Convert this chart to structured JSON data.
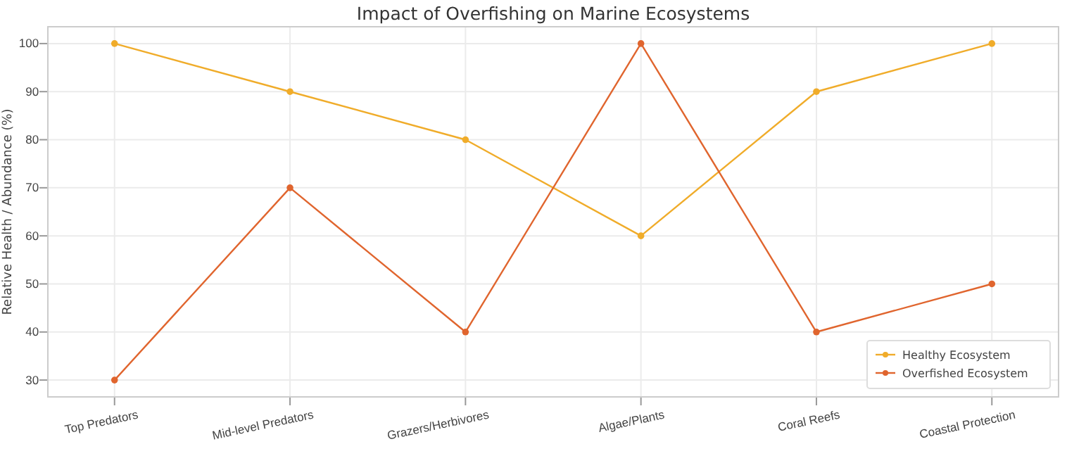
{
  "chart_data": {
    "type": "line",
    "title": "Impact of Overfishing on Marine Ecosystems",
    "ylabel": "Relative Health / Abundance (%)",
    "categories": [
      "Top Predators",
      "Mid-level Predators",
      "Grazers/Herbivores",
      "Algae/Plants",
      "Coral Reefs",
      "Coastal Protection"
    ],
    "series": [
      {
        "name": "Healthy Ecosystem",
        "color": "#f0ac2a",
        "values": [
          100,
          90,
          80,
          60,
          90,
          100
        ]
      },
      {
        "name": "Overfished Ecosystem",
        "color": "#e0652e",
        "values": [
          30,
          70,
          40,
          100,
          40,
          50
        ]
      }
    ],
    "ylim": [
      26.5,
      103.5
    ],
    "yticks": [
      30,
      40,
      50,
      60,
      70,
      80,
      90,
      100
    ],
    "grid": true,
    "legend": "bottom right",
    "marker": "circle",
    "line_style": "solid"
  }
}
